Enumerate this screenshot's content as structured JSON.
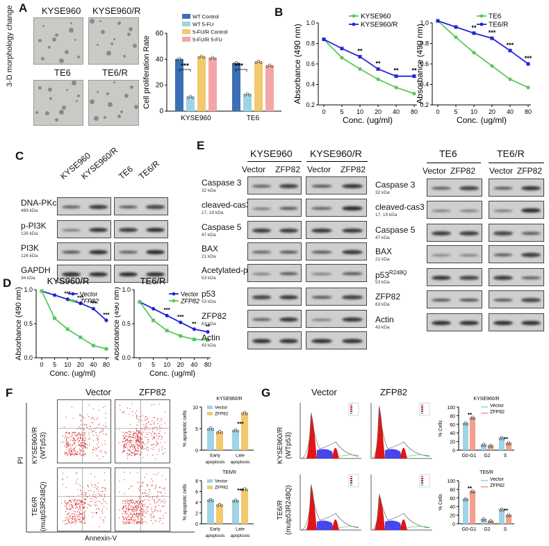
{
  "panels": {
    "A": "A",
    "B": "B",
    "C": "C",
    "D": "D",
    "E": "E",
    "F": "F",
    "G": "G"
  },
  "panel_a": {
    "side_label": "3-D morphology change",
    "image_labels": [
      "KYSE960",
      "KYSE960/R",
      "TE6",
      "TE6/R"
    ]
  },
  "panel_c": {
    "columns": [
      "KYSE960",
      "KYSE960/R",
      "TE6",
      "TE6/R"
    ],
    "rows": [
      {
        "name": "DNA-PKcs",
        "kda": "469 kDa"
      },
      {
        "name": "p-PI3K",
        "kda": "126 kDa"
      },
      {
        "name": "PI3K",
        "kda": "126 kDa"
      },
      {
        "name": "GAPDH",
        "kda": "34 kDa"
      }
    ]
  },
  "panel_e": {
    "groups": [
      "KYSE960",
      "KYSE960/R",
      "TE6",
      "TE6/R"
    ],
    "lane_labels": [
      "Vector",
      "ZFP82"
    ],
    "left_rows": [
      {
        "name": "Caspase 3",
        "kda": "32 kDa"
      },
      {
        "name": "cleaved-cas3",
        "kda": "17, 19 kDa"
      },
      {
        "name": "Caspase 5",
        "kda": "47 kDa"
      },
      {
        "name": "BAX",
        "kda": "21 kDa"
      },
      {
        "name": "Acetylated-p53",
        "kda": "53 kDa"
      },
      {
        "name": "p53",
        "kda": "53 kDa"
      },
      {
        "name": "ZFP82",
        "kda": "63 kDa"
      },
      {
        "name": "Actin",
        "kda": "43 kDa"
      }
    ],
    "right_rows": [
      {
        "name": "Caspase 3",
        "kda": "32 kDa"
      },
      {
        "name": "cleaved-cas3",
        "kda": "17, 19 kDa"
      },
      {
        "name": "Caspase 5",
        "kda": "47 kDa"
      },
      {
        "name": "BAX",
        "kda": "21 kDa"
      },
      {
        "name": "p53",
        "sup": "R248Q",
        "kda": "53 kDa"
      },
      {
        "name": "ZFP82",
        "kda": "63 kDa"
      },
      {
        "name": "Actin",
        "kda": "43 kDa"
      }
    ]
  },
  "panel_f": {
    "col_labels": [
      "Vector",
      "ZFP82"
    ],
    "row_labels": [
      "KYSE960/R\n(WTp53)",
      "TE6/R\n(mutp53R248Q)"
    ],
    "y_axis": "PI",
    "x_axis": "Annexin-V"
  },
  "panel_g": {
    "col_labels": [
      "Vector",
      "ZFP82"
    ],
    "row_labels": [
      "KYSE960/R\n(WTp53)",
      "TE6/R\n(mutp53R248Q)"
    ]
  },
  "chart_data": [
    {
      "id": "A-bar",
      "type": "bar",
      "ylabel": "Cell proliferation Rate",
      "ylim": [
        0,
        60
      ],
      "yticks": [
        0,
        20,
        40,
        60
      ],
      "categories": [
        "KYSE960",
        "TE6"
      ],
      "series": [
        {
          "name": "WT Control",
          "color": "#3b6fb6",
          "values": [
            40,
            37
          ]
        },
        {
          "name": "WT 5-FU",
          "color": "#9fd3e6",
          "values": [
            11,
            13
          ]
        },
        {
          "name": "5-FU/R Control",
          "color": "#f2c96b",
          "values": [
            42,
            38
          ]
        },
        {
          "name": "5-FU/R 5-FU",
          "color": "#f4a6a6",
          "values": [
            41,
            35
          ]
        }
      ],
      "annotations": [
        "***",
        "***"
      ]
    },
    {
      "id": "B-kyse",
      "type": "line",
      "ylabel": "Absorbance (490 nm)",
      "xlabel": "Conc. (ug/ml)",
      "x": [
        "0",
        "5",
        "10",
        "20",
        "40",
        "80"
      ],
      "ylim": [
        0.2,
        1.0
      ],
      "yticks": [
        "0.2",
        "0.4",
        "0.6",
        "0.8",
        "1.0"
      ],
      "series": [
        {
          "name": "KYSE960",
          "color": "#5ac85a",
          "values": [
            0.84,
            0.66,
            0.55,
            0.45,
            0.37,
            0.31
          ]
        },
        {
          "name": "KYSE960/R",
          "color": "#2323d6",
          "values": [
            0.84,
            0.75,
            0.67,
            0.55,
            0.48,
            0.48
          ]
        }
      ],
      "annotations": [
        "**",
        "**",
        "**",
        "**"
      ]
    },
    {
      "id": "B-te6",
      "type": "line",
      "ylabel": "Absorbance (490 nm)",
      "xlabel": "Conc. (ug/ml)",
      "x": [
        "0",
        "5",
        "10",
        "20",
        "40",
        "80"
      ],
      "ylim": [
        0.2,
        1.0
      ],
      "yticks": [
        "0.2",
        "0.4",
        "0.6",
        "0.8",
        "1.0"
      ],
      "series": [
        {
          "name": "TE6",
          "color": "#5ac85a",
          "values": [
            1.02,
            0.86,
            0.71,
            0.58,
            0.45,
            0.37
          ]
        },
        {
          "name": "TE6/R",
          "color": "#2323d6",
          "values": [
            1.02,
            0.96,
            0.9,
            0.85,
            0.73,
            0.6
          ]
        }
      ],
      "annotations": [
        "**",
        "***",
        "***",
        "***"
      ]
    },
    {
      "id": "D-kyse",
      "type": "line",
      "title": "KYS960/R",
      "ylabel": "Absorbance (490 nm)",
      "xlabel": "Conc. (ug/ml)",
      "x": [
        "0",
        "5",
        "10",
        "20",
        "40",
        "80"
      ],
      "ylim": [
        0.0,
        1.0
      ],
      "yticks": [
        "0.0",
        "0.5",
        "1.0"
      ],
      "series": [
        {
          "name": "Vector",
          "color": "#2323d6",
          "values": [
            0.98,
            0.92,
            0.86,
            0.8,
            0.72,
            0.55
          ]
        },
        {
          "name": "ZFP82",
          "color": "#5ac85a",
          "values": [
            0.98,
            0.58,
            0.42,
            0.3,
            0.18,
            0.13
          ]
        }
      ],
      "annotations": [
        "***",
        "***",
        "***",
        "***"
      ]
    },
    {
      "id": "D-te6",
      "type": "line",
      "title": "TE6/R",
      "ylabel": "Absorbance (490 nm)",
      "xlabel": "Conc. (ug/ml)",
      "x": [
        "0",
        "5",
        "10",
        "20",
        "40",
        "80"
      ],
      "ylim": [
        0.0,
        1.0
      ],
      "yticks": [
        "0.0",
        "0.5",
        "1.0"
      ],
      "series": [
        {
          "name": "Vector",
          "color": "#2323d6",
          "values": [
            0.82,
            0.72,
            0.62,
            0.52,
            0.42,
            0.38
          ]
        },
        {
          "name": "ZFP82",
          "color": "#5ac85a",
          "values": [
            0.82,
            0.55,
            0.4,
            0.32,
            0.27,
            0.26
          ]
        }
      ],
      "annotations": [
        "***",
        "***",
        "**",
        "**"
      ]
    },
    {
      "id": "F-kyse",
      "type": "bar",
      "title": "KYSE960/R",
      "ylabel": "% apoptotic cells",
      "ylim": [
        0,
        10
      ],
      "yticks": [
        0,
        5,
        10
      ],
      "categories": [
        "Early\napoptosis",
        "Late\napoptosis"
      ],
      "series": [
        {
          "name": "Vector",
          "color": "#9fd3e6",
          "values": [
            5.0,
            4.6
          ]
        },
        {
          "name": "ZFP82",
          "color": "#f2c96b",
          "values": [
            4.2,
            8.6
          ]
        }
      ],
      "annotations": [
        "***"
      ]
    },
    {
      "id": "F-te6",
      "type": "bar",
      "title": "TE6/R",
      "ylabel": "% apoptotic cells",
      "ylim": [
        0,
        8
      ],
      "yticks": [
        0,
        2,
        4,
        6,
        8
      ],
      "categories": [
        "Early\napoptosis",
        "Late\napoptosis"
      ],
      "series": [
        {
          "name": "Vector",
          "color": "#9fd3e6",
          "values": [
            4.4,
            4.3
          ]
        },
        {
          "name": "ZFP82",
          "color": "#f2c96b",
          "values": [
            3.5,
            6.4
          ]
        }
      ],
      "annotations": [
        "***"
      ]
    },
    {
      "id": "G-kyse",
      "type": "bar",
      "title": "KYSE960/R",
      "ylabel": "% Cells",
      "ylim": [
        0,
        100
      ],
      "yticks": [
        0,
        20,
        40,
        60,
        80,
        100
      ],
      "categories": [
        "G0-G1",
        "G2",
        "S"
      ],
      "series": [
        {
          "name": "Vector",
          "color": "#9fd3e6",
          "values": [
            62,
            12,
            28
          ]
        },
        {
          "name": "ZFP82",
          "color": "#f4a08a",
          "values": [
            75,
            10,
            16
          ]
        }
      ],
      "annotations": [
        "**",
        "**"
      ]
    },
    {
      "id": "G-te6",
      "type": "bar",
      "title": "TE6/R",
      "ylabel": "% Cells",
      "ylim": [
        0,
        100
      ],
      "yticks": [
        0,
        20,
        40,
        60,
        80,
        100
      ],
      "categories": [
        "G0-G1",
        "G2",
        "S"
      ],
      "series": [
        {
          "name": "Vector",
          "color": "#9fd3e6",
          "values": [
            57,
            10,
            33
          ]
        },
        {
          "name": "ZFP82",
          "color": "#f4a08a",
          "values": [
            75,
            6,
            20
          ]
        }
      ],
      "annotations": [
        "**",
        "**"
      ]
    }
  ]
}
